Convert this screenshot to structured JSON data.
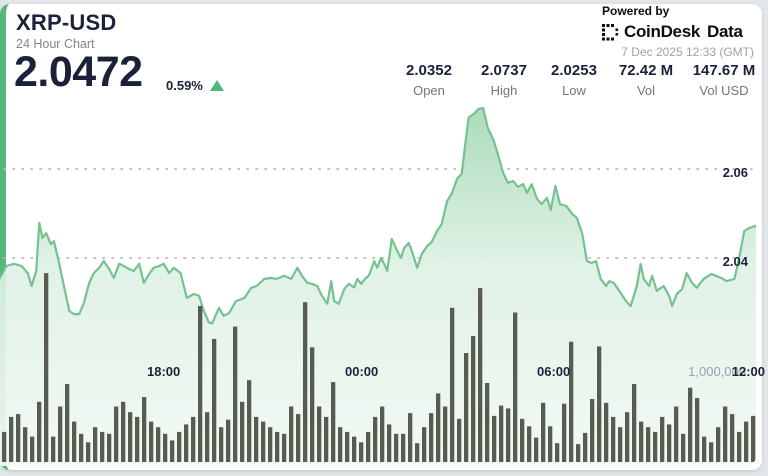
{
  "header": {
    "symbol": "XRP-USD",
    "subtitle": "24 Hour Chart",
    "price": "2.0472",
    "change": "0.59%",
    "change_direction": "up"
  },
  "stats": [
    {
      "value": "2.0352",
      "label": "Open"
    },
    {
      "value": "2.0737",
      "label": "High"
    },
    {
      "value": "2.0253",
      "label": "Low"
    },
    {
      "value": "72.42 M",
      "label": "Vol"
    },
    {
      "value": "147.67 M",
      "label": "Vol USD"
    }
  ],
  "branding": {
    "powered_by": "Powered by",
    "logo_text_1": "CoinDesk",
    "logo_text_2": "Data",
    "timestamp": "7 Dec 2025 12:33 (GMT)"
  },
  "colors": {
    "accent_green": "#54b87c",
    "line_green": "#76c28e",
    "fill_green_top": "#a3d8b3",
    "fill_green_bottom": "#f3f9f5",
    "volume_bar": "#575c50",
    "navy_text": "#1b2138",
    "gray_text": "#6f7582",
    "gridline": "#b8bdb6"
  },
  "chart_data": {
    "type": "line",
    "title": "XRP-USD 24 Hour Chart",
    "legend": "none",
    "grid": "dotted horizontal",
    "x_axis": {
      "labels": [
        "18:00",
        "00:00",
        "06:00",
        "12:00"
      ],
      "window": "24 hours ending 7 Dec 2025 12:33 GMT"
    },
    "y_axis_price": {
      "tick_labels": [
        "2.06",
        "2.04"
      ],
      "ticks": [
        2.06,
        2.04
      ],
      "visible_range": [
        2.0253,
        2.0737
      ],
      "unit": "USD"
    },
    "y_axis_volume": {
      "tick_label": "1,000,000",
      "tick_value_m": 1.0
    },
    "price_series": {
      "name": "XRP-USD price",
      "unit": "USD",
      "points": [
        [
          0.007,
          2.0353
        ],
        [
          0.016,
          2.0382
        ],
        [
          0.026,
          2.0387
        ],
        [
          0.036,
          2.0382
        ],
        [
          0.044,
          2.0366
        ],
        [
          0.049,
          2.0337
        ],
        [
          0.055,
          2.0371
        ],
        [
          0.059,
          2.0479
        ],
        [
          0.063,
          2.0445
        ],
        [
          0.068,
          2.0456
        ],
        [
          0.074,
          2.0431
        ],
        [
          0.078,
          2.0438
        ],
        [
          0.085,
          2.0387
        ],
        [
          0.091,
          2.0337
        ],
        [
          0.098,
          2.0281
        ],
        [
          0.104,
          2.0274
        ],
        [
          0.111,
          2.0274
        ],
        [
          0.117,
          2.0299
        ],
        [
          0.124,
          2.0344
        ],
        [
          0.13,
          2.0366
        ],
        [
          0.137,
          2.0378
        ],
        [
          0.143,
          2.0393
        ],
        [
          0.15,
          2.0375
        ],
        [
          0.156,
          2.0355
        ],
        [
          0.163,
          2.0387
        ],
        [
          0.169,
          2.0382
        ],
        [
          0.176,
          2.0375
        ],
        [
          0.182,
          2.0371
        ],
        [
          0.189,
          2.0387
        ],
        [
          0.195,
          2.0344
        ],
        [
          0.202,
          2.0364
        ],
        [
          0.208,
          2.0378
        ],
        [
          0.215,
          2.0382
        ],
        [
          0.221,
          2.0387
        ],
        [
          0.228,
          2.0366
        ],
        [
          0.234,
          2.0378
        ],
        [
          0.243,
          2.0366
        ],
        [
          0.251,
          2.031
        ],
        [
          0.26,
          2.0319
        ],
        [
          0.267,
          2.0315
        ],
        [
          0.273,
          2.0281
        ],
        [
          0.28,
          2.0255
        ],
        [
          0.284,
          2.0253
        ],
        [
          0.293,
          2.0288
        ],
        [
          0.299,
          2.027
        ],
        [
          0.306,
          2.0276
        ],
        [
          0.315,
          2.0303
        ],
        [
          0.326,
          2.031
        ],
        [
          0.335,
          2.0333
        ],
        [
          0.342,
          2.0337
        ],
        [
          0.352,
          2.0353
        ],
        [
          0.361,
          2.0355
        ],
        [
          0.368,
          2.0353
        ],
        [
          0.378,
          2.036
        ],
        [
          0.387,
          2.0353
        ],
        [
          0.395,
          2.0378
        ],
        [
          0.401,
          2.036
        ],
        [
          0.408,
          2.0344
        ],
        [
          0.414,
          2.0342
        ],
        [
          0.421,
          2.0337
        ],
        [
          0.427,
          2.0315
        ],
        [
          0.434,
          2.0297
        ],
        [
          0.439,
          2.0348
        ],
        [
          0.443,
          2.0303
        ],
        [
          0.449,
          2.0297
        ],
        [
          0.456,
          2.033
        ],
        [
          0.462,
          2.0342
        ],
        [
          0.469,
          2.0334
        ],
        [
          0.473,
          2.0353
        ],
        [
          0.478,
          2.0342
        ],
        [
          0.484,
          2.0355
        ],
        [
          0.488,
          2.036
        ],
        [
          0.495,
          2.0393
        ],
        [
          0.499,
          2.0378
        ],
        [
          0.504,
          2.04
        ],
        [
          0.508,
          2.0387
        ],
        [
          0.512,
          2.0371
        ],
        [
          0.518,
          2.0443
        ],
        [
          0.525,
          2.0416
        ],
        [
          0.53,
          2.04
        ],
        [
          0.534,
          2.0422
        ],
        [
          0.54,
          2.0434
        ],
        [
          0.544,
          2.0416
        ],
        [
          0.551,
          2.0378
        ],
        [
          0.557,
          2.0409
        ],
        [
          0.564,
          2.0427
        ],
        [
          0.57,
          2.0436
        ],
        [
          0.577,
          2.0461
        ],
        [
          0.583,
          2.0476
        ],
        [
          0.59,
          2.0528
        ],
        [
          0.596,
          2.0544
        ],
        [
          0.603,
          2.0578
        ],
        [
          0.609,
          2.0589
        ],
        [
          0.613,
          2.0647
        ],
        [
          0.618,
          2.0715
        ],
        [
          0.625,
          2.0724
        ],
        [
          0.631,
          2.0735
        ],
        [
          0.637,
          2.0737
        ],
        [
          0.643,
          2.0692
        ],
        [
          0.65,
          2.0667
        ],
        [
          0.656,
          2.0634
        ],
        [
          0.663,
          2.0591
        ],
        [
          0.669,
          2.0569
        ],
        [
          0.676,
          2.0573
        ],
        [
          0.682,
          2.056
        ],
        [
          0.689,
          2.0566
        ],
        [
          0.694,
          2.0546
        ],
        [
          0.7,
          2.0566
        ],
        [
          0.707,
          2.0533
        ],
        [
          0.713,
          2.0521
        ],
        [
          0.72,
          2.0535
        ],
        [
          0.725,
          2.0508
        ],
        [
          0.731,
          2.0562
        ],
        [
          0.737,
          2.0521
        ],
        [
          0.745,
          2.0517
        ],
        [
          0.753,
          2.0499
        ],
        [
          0.759,
          2.049
        ],
        [
          0.766,
          2.0454
        ],
        [
          0.772,
          2.0393
        ],
        [
          0.778,
          2.0389
        ],
        [
          0.784,
          2.0393
        ],
        [
          0.79,
          2.0353
        ],
        [
          0.797,
          2.0337
        ],
        [
          0.801,
          2.0348
        ],
        [
          0.807,
          2.0344
        ],
        [
          0.814,
          2.0326
        ],
        [
          0.823,
          2.0303
        ],
        [
          0.829,
          2.0292
        ],
        [
          0.837,
          2.0337
        ],
        [
          0.842,
          2.0387
        ],
        [
          0.846,
          2.0353
        ],
        [
          0.853,
          2.0337
        ],
        [
          0.857,
          2.036
        ],
        [
          0.863,
          2.0326
        ],
        [
          0.872,
          2.0337
        ],
        [
          0.879,
          2.0315
        ],
        [
          0.883,
          2.0292
        ],
        [
          0.889,
          2.0319
        ],
        [
          0.896,
          2.033
        ],
        [
          0.902,
          2.0366
        ],
        [
          0.909,
          2.0344
        ],
        [
          0.915,
          2.0333
        ],
        [
          0.924,
          2.0353
        ],
        [
          0.934,
          2.0364
        ],
        [
          0.94,
          2.036
        ],
        [
          0.947,
          2.0355
        ],
        [
          0.954,
          2.0348
        ],
        [
          0.964,
          2.0353
        ],
        [
          0.97,
          2.0398
        ],
        [
          0.977,
          2.0461
        ],
        [
          0.983,
          2.0467
        ],
        [
          0.991,
          2.0472
        ],
        [
          1.0,
          2.0472
        ]
      ]
    },
    "volume_series": {
      "name": "Volume",
      "unit": "millions",
      "values_m": [
        0.32,
        0.48,
        0.51,
        0.37,
        0.27,
        0.64,
        2.01,
        0.27,
        0.59,
        0.83,
        0.43,
        0.3,
        0.21,
        0.37,
        0.32,
        0.3,
        0.59,
        0.64,
        0.53,
        0.48,
        0.69,
        0.43,
        0.37,
        0.3,
        0.23,
        0.32,
        0.4,
        0.48,
        1.66,
        0.53,
        1.31,
        0.37,
        0.45,
        1.44,
        0.64,
        0.87,
        0.48,
        0.43,
        0.37,
        0.32,
        0.3,
        0.59,
        0.51,
        1.7,
        1.22,
        0.59,
        0.48,
        0.85,
        0.37,
        0.32,
        0.27,
        0.21,
        0.32,
        0.48,
        0.59,
        0.4,
        0.3,
        0.3,
        0.52,
        0.2,
        0.37,
        0.52,
        0.73,
        0.59,
        1.64,
        0.46,
        1.16,
        1.34,
        1.85,
        0.84,
        0.49,
        0.6,
        0.57,
        1.59,
        0.46,
        0.38,
        0.26,
        0.63,
        0.38,
        0.2,
        0.62,
        1.28,
        0.19,
        0.31,
        0.67,
        1.23,
        0.63,
        0.48,
        0.37,
        0.53,
        0.83,
        0.43,
        0.37,
        0.32,
        0.48,
        0.4,
        0.59,
        0.3,
        0.79,
        0.68,
        0.27,
        0.21,
        0.37,
        0.59,
        0.51,
        0.32,
        0.43,
        0.49
      ]
    }
  }
}
